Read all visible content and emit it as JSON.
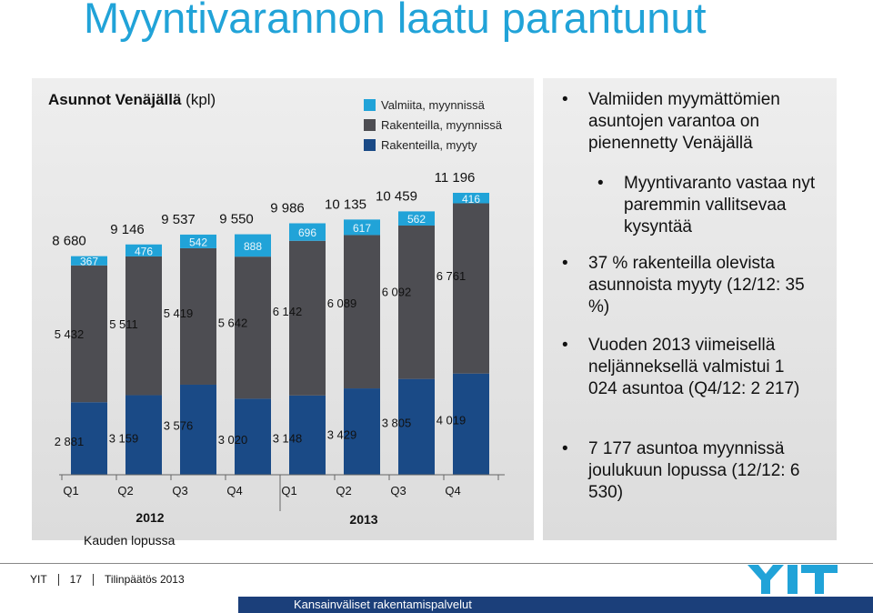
{
  "page": {
    "title": "Myyntivarannon laatu parantunut",
    "footnote": "Kauden lopussa",
    "footer": {
      "company": "YIT",
      "page": "17",
      "doc": "Tilinpäätös 2013",
      "tagline": "Kansainväliset rakentamispalvelut"
    }
  },
  "chart_title": {
    "bold": "Asunnot Venäjällä",
    "normal": " (kpl)"
  },
  "colors": {
    "valmiita": "#21a3d8",
    "rakenteilla_myynnissa": "#4d4d52",
    "rakenteilla_myyty": "#1a4a86",
    "panel": "#e4e4e4"
  },
  "chart_data": {
    "type": "bar",
    "stacked": true,
    "title": "Asunnot Venäjällä (kpl)",
    "categories": [
      "Q1",
      "Q2",
      "Q3",
      "Q4",
      "Q1",
      "Q2",
      "Q3",
      "Q4"
    ],
    "year_groups": [
      {
        "label": "2012"
      },
      {
        "label": "2013"
      }
    ],
    "series": [
      {
        "name": "Rakenteilla, myyty",
        "values": [
          2881,
          3159,
          3576,
          3020,
          3148,
          3429,
          3805,
          4019
        ]
      },
      {
        "name": "Rakenteilla, myynnissä",
        "values": [
          5432,
          5511,
          5419,
          5642,
          6142,
          6089,
          6092,
          6761
        ]
      },
      {
        "name": "Valmiita, myynnissä",
        "values": [
          367,
          476,
          542,
          888,
          696,
          617,
          562,
          416
        ]
      }
    ],
    "legend": [
      "Valmiita, myynnissä",
      "Rakenteilla, myynnissä",
      "Rakenteilla, myyty"
    ],
    "totals": [
      8680,
      9146,
      9537,
      9550,
      9986,
      10135,
      10459,
      11196
    ],
    "ylim": [
      0,
      12000
    ],
    "legend_position": "top-right"
  },
  "bullets": [
    {
      "text": "Valmiiden myymättömien asuntojen varantoa on pienennetty Venäjällä",
      "level": 1
    },
    {
      "text": "Myyntivaranto vastaa nyt paremmin vallitsevaa kysyntää",
      "level": 2
    },
    {
      "text": "37 % rakenteilla olevista asunnoista myyty (12/12: 35 %)",
      "level": 1
    },
    {
      "text": "Vuoden 2013 viimeisellä neljänneksellä valmistui 1 024 asuntoa (Q4/12: 2 217)",
      "level": 1
    },
    {
      "text": "7 177 asuntoa myynnissä joulukuun lopussa (12/12: 6 530)",
      "level": 1
    }
  ]
}
